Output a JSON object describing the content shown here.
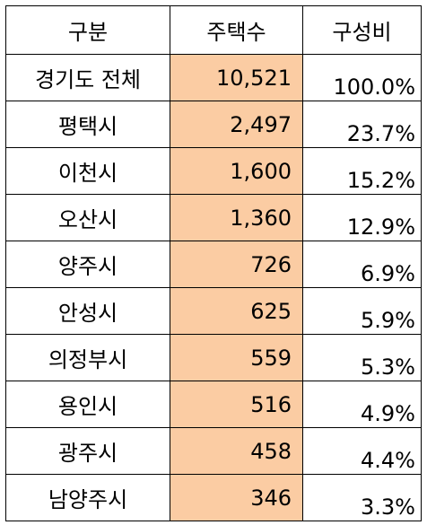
{
  "table": {
    "headers": [
      "구분",
      "주택수",
      "구성비"
    ],
    "rows": [
      {
        "region": "경기도 전체",
        "count": "10,521",
        "ratio": "100.0%"
      },
      {
        "region": "평택시",
        "count": "2,497",
        "ratio": "23.7%"
      },
      {
        "region": "이천시",
        "count": "1,600",
        "ratio": "15.2%"
      },
      {
        "region": "오산시",
        "count": "1,360",
        "ratio": "12.9%"
      },
      {
        "region": "양주시",
        "count": "726",
        "ratio": "6.9%"
      },
      {
        "region": "안성시",
        "count": "625",
        "ratio": "5.9%"
      },
      {
        "region": "의정부시",
        "count": "559",
        "ratio": "5.3%"
      },
      {
        "region": "용인시",
        "count": "516",
        "ratio": "4.9%"
      },
      {
        "region": "광주시",
        "count": "458",
        "ratio": "4.4%"
      },
      {
        "region": "남양주시",
        "count": "346",
        "ratio": "3.3%"
      }
    ]
  },
  "colors": {
    "highlight": "#fbcca3",
    "border": "#000000"
  }
}
